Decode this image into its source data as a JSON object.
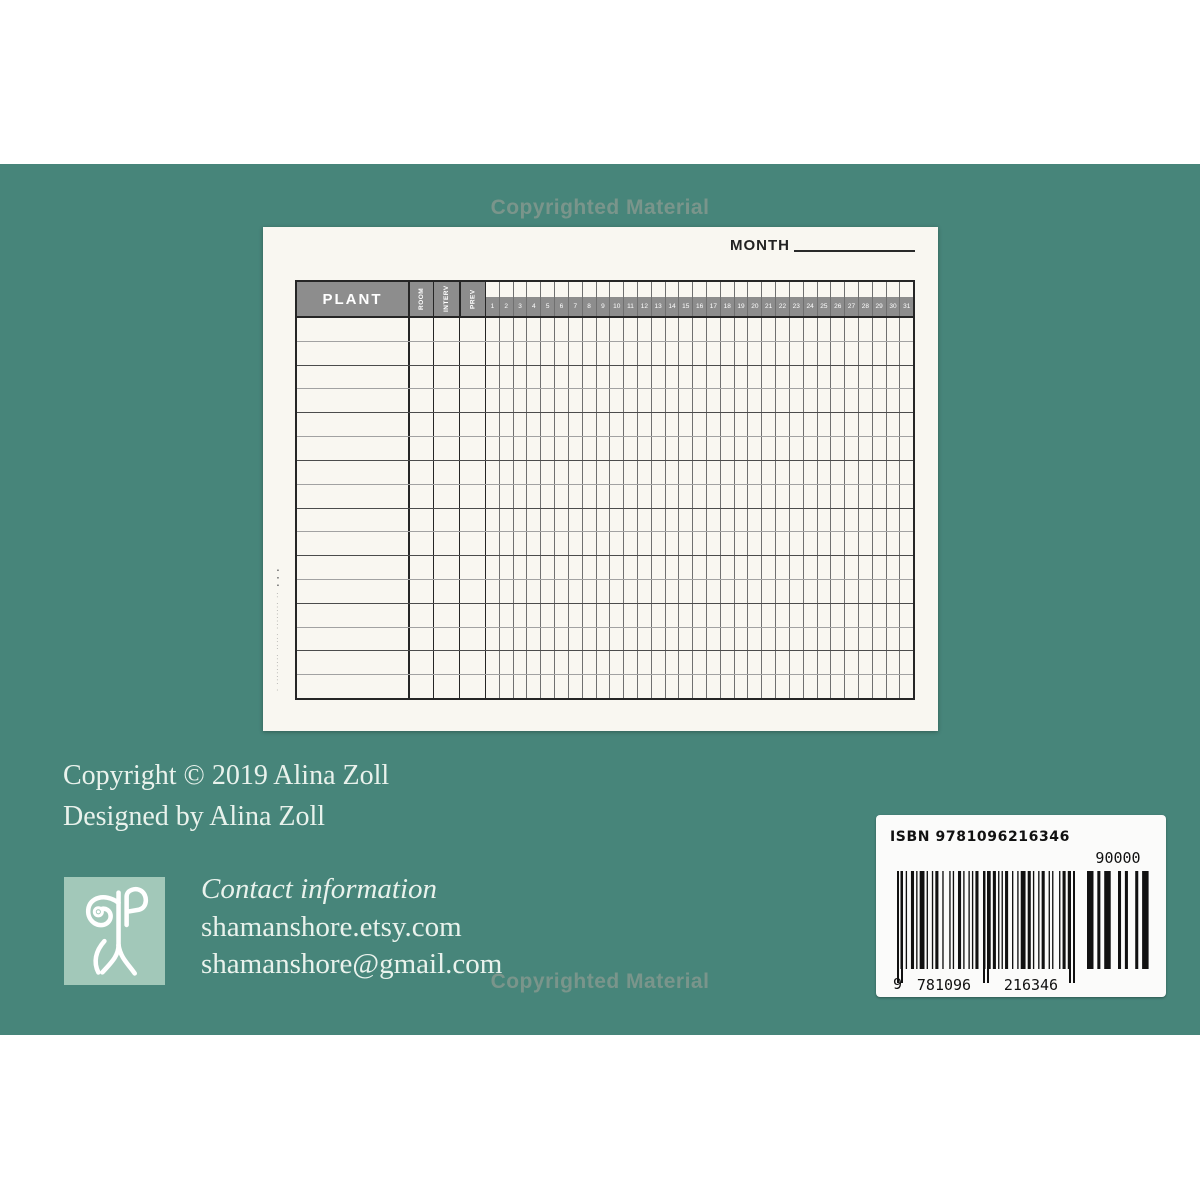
{
  "watermark": {
    "top": "Copyrighted Material",
    "bottom": "Copyrighted Material"
  },
  "page": {
    "month_label": "MONTH",
    "edge_fine_print": "· ········· ····· ········ ·· ▪▪▪",
    "table": {
      "plant_header": "PLANT",
      "rotated_headers": [
        "ROOM",
        "INTERV",
        "PREV"
      ],
      "day_numbers": [
        "1",
        "2",
        "3",
        "4",
        "5",
        "6",
        "7",
        "8",
        "9",
        "10",
        "11",
        "12",
        "13",
        "14",
        "15",
        "16",
        "17",
        "18",
        "19",
        "20",
        "21",
        "22",
        "23",
        "24",
        "25",
        "26",
        "27",
        "28",
        "29",
        "30",
        "31"
      ],
      "row_count": 16
    }
  },
  "back_cover": {
    "copyright_line1": "Copyright © 2019 Alina Zoll",
    "copyright_line2": "Designed by Alina Zoll",
    "contact_heading": "Contact information",
    "contact_etsy": "shamanshore.etsy.com",
    "contact_email": "shamanshore@gmail.com"
  },
  "barcode": {
    "isbn_top": "ISBN 9781096216346",
    "price_code": "90000",
    "digits_left": "9",
    "digits_group1": "781096",
    "digits_group2": "216346"
  },
  "colors": {
    "teal_background": "#47857a",
    "page_background": "#f9f7f1",
    "table_header_gray": "#8d8d8d",
    "logo_background": "#a2c8b9",
    "cover_text": "#e9f2ec"
  }
}
